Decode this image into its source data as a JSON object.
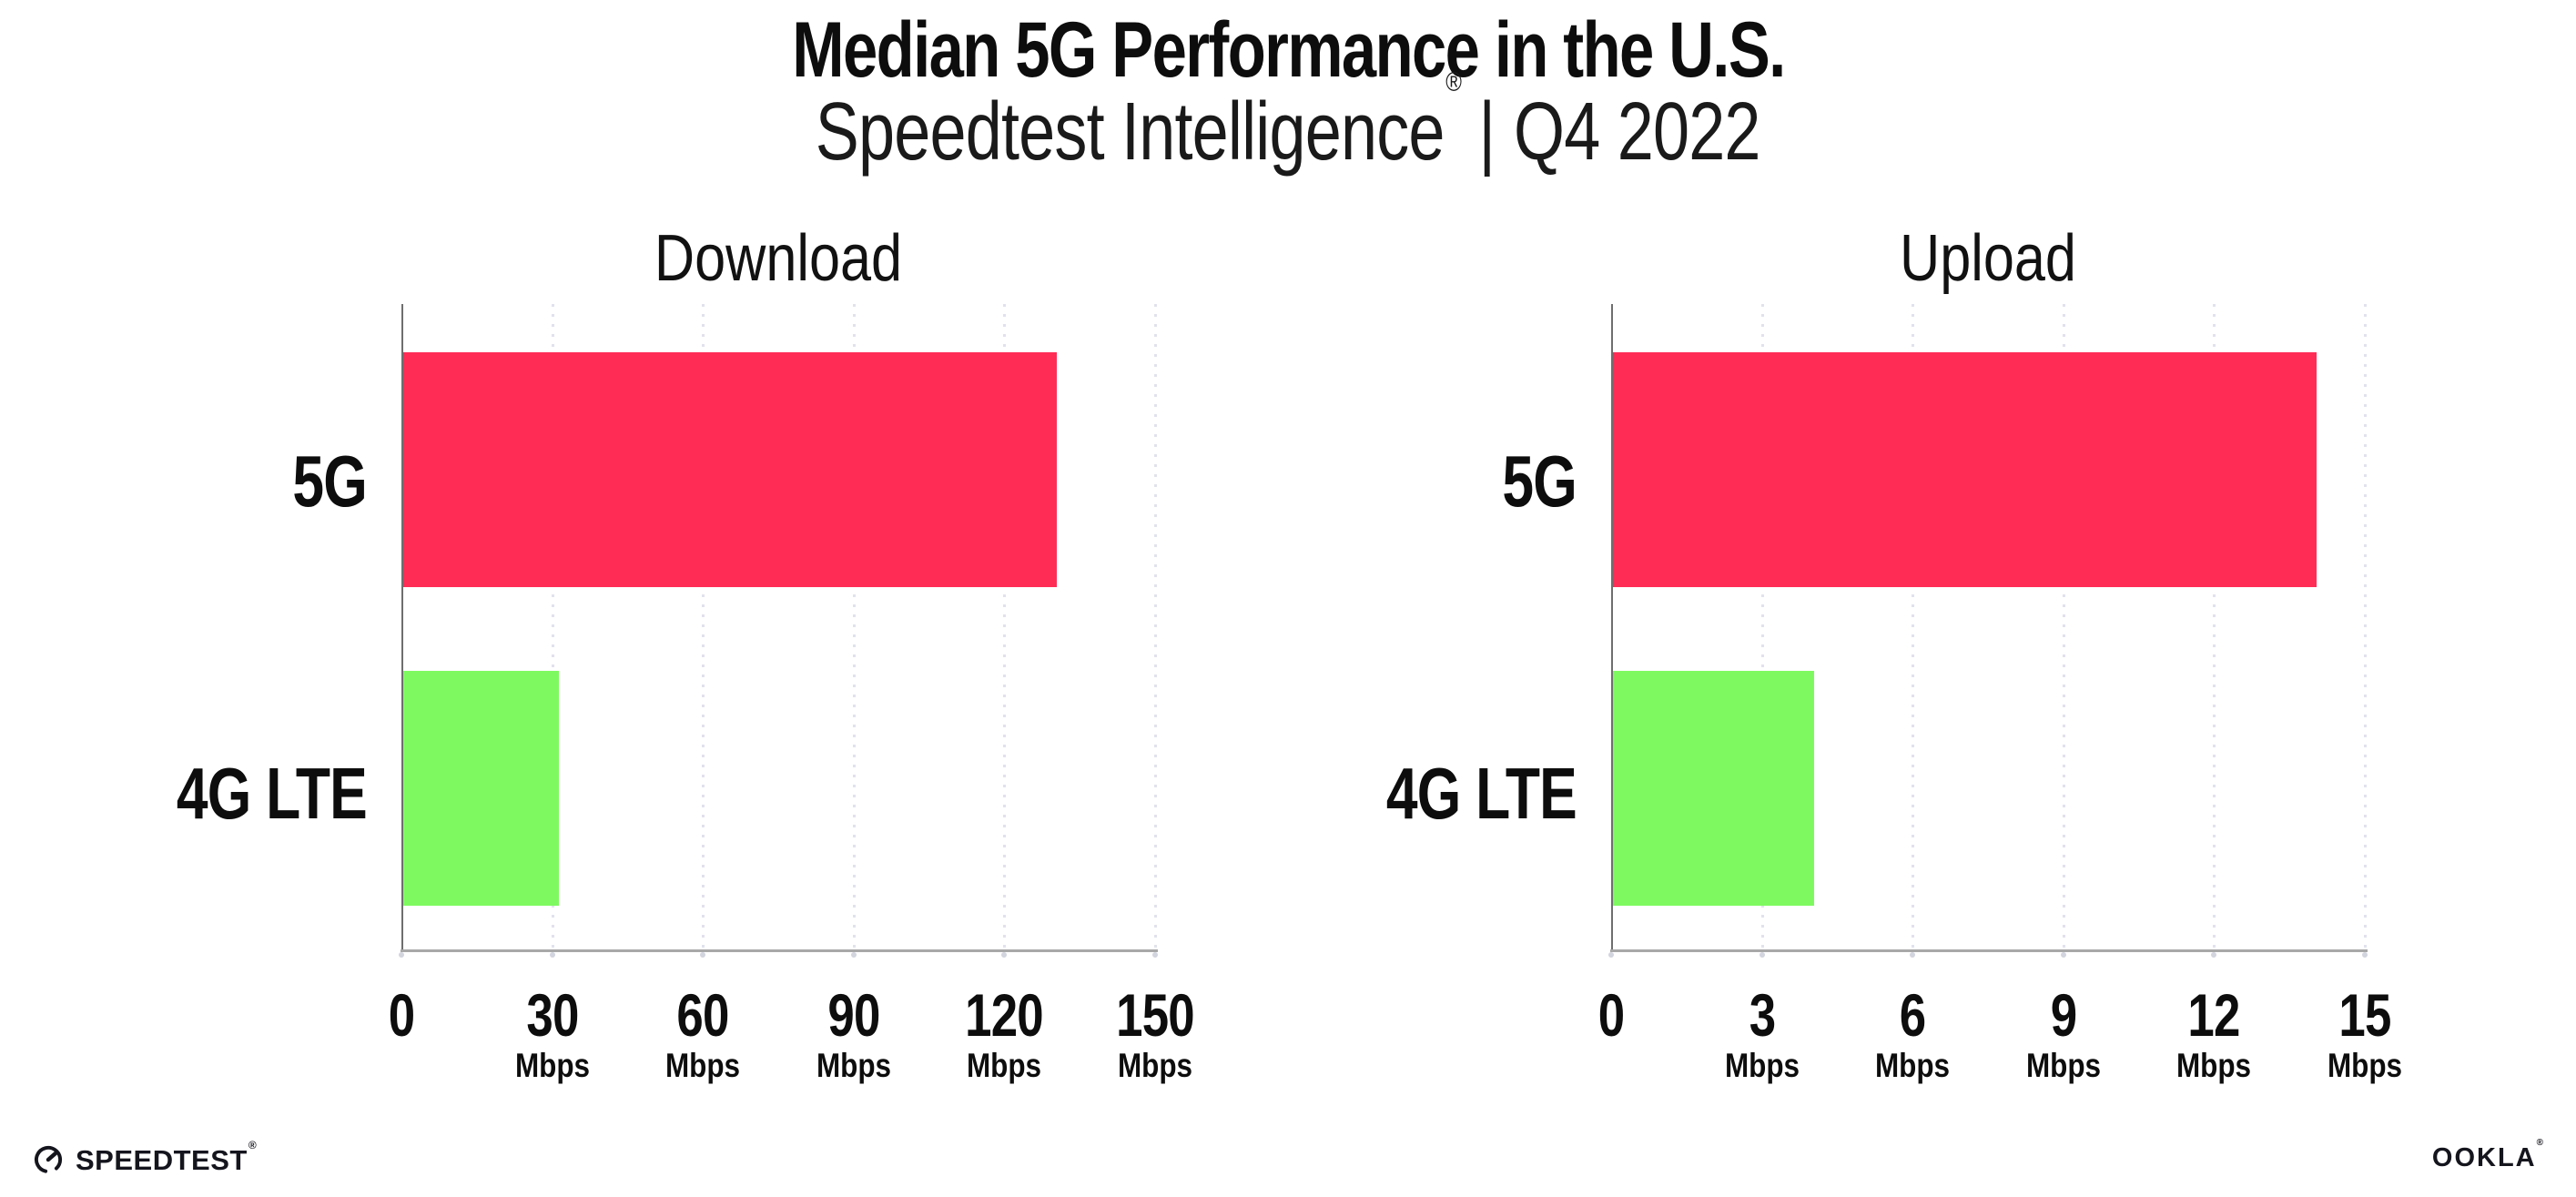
{
  "header": {
    "title": "Median 5G Performance in the U.S.",
    "subtitle": {
      "brand": "Speedtest Intelligence",
      "registered_mark": "®",
      "separator": "|",
      "period": "Q4 2022"
    }
  },
  "chart_data": [
    {
      "type": "bar",
      "orientation": "horizontal",
      "title": "Download",
      "categories": [
        "5G",
        "4G LTE"
      ],
      "values": [
        130,
        31
      ],
      "unit": "Mbps",
      "xlim": [
        0,
        150
      ],
      "xticks": [
        0,
        30,
        60,
        90,
        120,
        150
      ],
      "grid": "vertical-dotted",
      "legend": "none",
      "bar_colors": [
        "#ff2d56",
        "#7efa60"
      ]
    },
    {
      "type": "bar",
      "orientation": "horizontal",
      "title": "Upload",
      "categories": [
        "5G",
        "4G LTE"
      ],
      "values": [
        14,
        4
      ],
      "unit": "Mbps",
      "xlim": [
        0,
        15
      ],
      "xticks": [
        0,
        3,
        6,
        9,
        12,
        15
      ],
      "grid": "vertical-dotted",
      "legend": "none",
      "bar_colors": [
        "#ff2d56",
        "#7efa60"
      ]
    }
  ],
  "colors": {
    "bar_5g": "#ff2d56",
    "bar_4g_lte": "#7efa60",
    "gridline": "#e1e2ec",
    "axis_line": "#a8a8a8",
    "axis_spine": "#6e6e6e",
    "tick_dot": "#d2d4de",
    "text": "#0d0d0d",
    "logo_text": "#15151e"
  },
  "footer": {
    "speedtest_label": "SPEEDTEST",
    "speedtest_mark": "®",
    "speedtest_icon": "gauge-icon",
    "ookla_label": "OOKLA",
    "ookla_mark": "®"
  }
}
